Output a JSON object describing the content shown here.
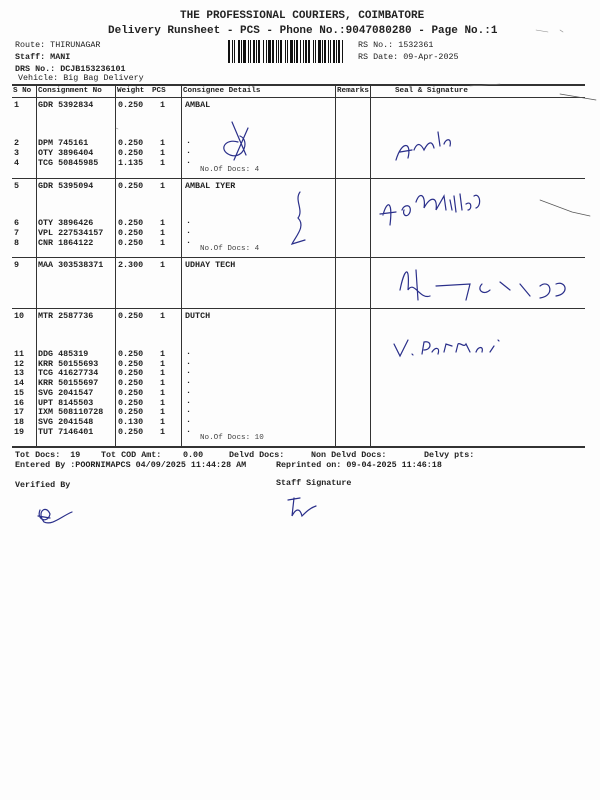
{
  "header": {
    "company": "THE PROFESSIONAL COURIERS, COIMBATORE",
    "subtitle": "Delivery Runsheet - PCS - Phone No.:9047080280 - Page No.:1",
    "route": "Route: THIRUNAGAR",
    "staff": "Staff: MANI",
    "drs_no": "DRS No.: DCJB153236101",
    "vehicle": "Vehicle: Big Bag Delivery",
    "rs_no": "RS No.: 1532361",
    "rs_date": "RS Date: 09-Apr-2025"
  },
  "columns": [
    "S No",
    "Consignment No",
    "Weight",
    "PCS",
    "Consignee Details",
    "Remarks",
    "Seal & Signature"
  ],
  "groups": [
    {
      "consignee": "AMBAL",
      "docs": "No.Of Docs: 4",
      "rows": [
        [
          "1",
          "GDR 5392834",
          "0.250",
          "1"
        ],
        [
          "2",
          "DPM 745161",
          "0.250",
          "1"
        ],
        [
          "3",
          "OTY 3896404",
          "0.250",
          "1"
        ],
        [
          "4",
          "TCG 50845985",
          "1.135",
          "1"
        ]
      ]
    },
    {
      "consignee": "AMBAL IYER",
      "docs": "No.Of Docs: 4",
      "rows": [
        [
          "5",
          "GDR 5395094",
          "0.250",
          "1"
        ],
        [
          "6",
          "OTY 3896426",
          "0.250",
          "1"
        ],
        [
          "7",
          "VPL 227534157",
          "0.250",
          "1"
        ],
        [
          "8",
          "CNR 1864122",
          "0.250",
          "1"
        ]
      ]
    },
    {
      "consignee": "UDHAY TECH",
      "docs": "",
      "rows": [
        [
          "9",
          "MAA 303538371",
          "2.300",
          "1"
        ]
      ]
    },
    {
      "consignee": "DUTCH",
      "docs": "No.Of Docs: 10",
      "rows": [
        [
          "10",
          "MTR 2587736",
          "0.250",
          "1"
        ],
        [
          "11",
          "DDG 485319",
          "0.250",
          "1"
        ],
        [
          "12",
          "KRR 50155693",
          "0.250",
          "1"
        ],
        [
          "13",
          "TCG 41627734",
          "0.250",
          "1"
        ],
        [
          "14",
          "KRR 50155697",
          "0.250",
          "1"
        ],
        [
          "15",
          "SVG 2041547",
          "0.250",
          "1"
        ],
        [
          "16",
          "UPT 8145503",
          "0.250",
          "1"
        ],
        [
          "17",
          "IXM 508110728",
          "0.250",
          "1"
        ],
        [
          "18",
          "SVG 2041548",
          "0.130",
          "1"
        ],
        [
          "19",
          "TUT 7146401",
          "0.250",
          "1"
        ]
      ]
    }
  ],
  "footer": {
    "tot_docs": "Tot Docs:  19",
    "tot_cod": "Tot COD Amt:",
    "cod_value": "0.00",
    "delvd": "Delvd Docs:",
    "non_delvd": "Non Delvd Docs:",
    "delvy_pts": "Delvy pts:",
    "entered_by": "Entered By :POORNIMAPCS 04/09/2025 11:44:28 AM",
    "reprinted": "Reprinted on: 09-04-2025 11:46:18",
    "verified_by": "Verified By",
    "staff_signature": "Staff Signature"
  }
}
